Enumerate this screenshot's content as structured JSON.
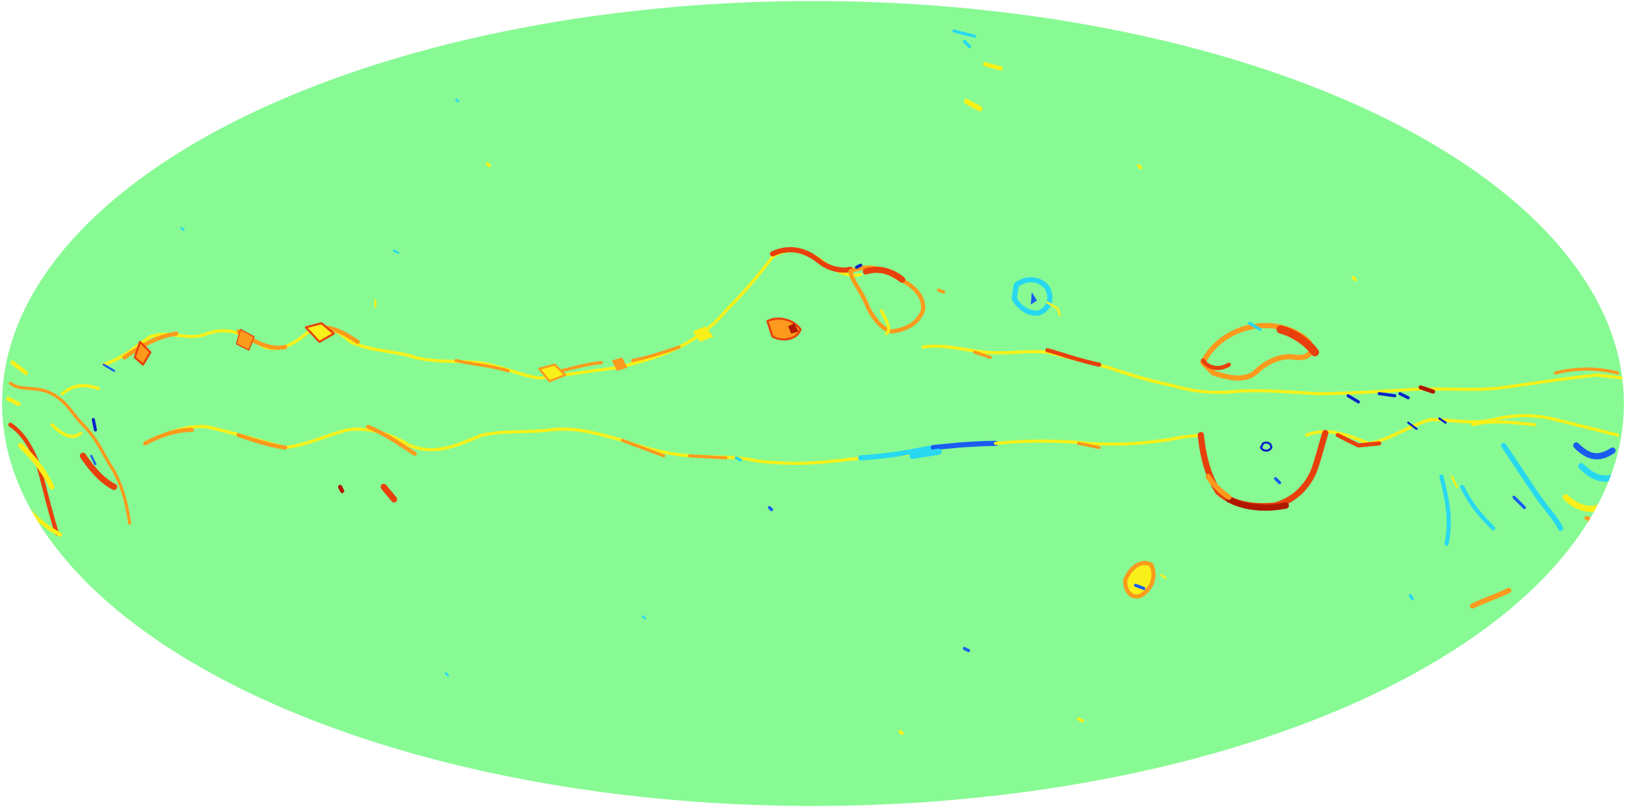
{
  "map": {
    "projection": "mollweide",
    "background_color": "#ffffff",
    "base_color": "#88fa94",
    "colormap": "jet",
    "palette": {
      "deep_red": "#b01800",
      "red": "#e8400c",
      "orange": "#fb9a1c",
      "yellow": "#f8f018",
      "cyan": "#28d8f0",
      "blue": "#1a5cf0",
      "deep_blue": "#0822c8"
    },
    "features": [
      "galactic-plane-north-filament",
      "galactic-plane-south-filament",
      "central-loop",
      "northern-ring",
      "eastern-loop-upper",
      "eastern-loop-lower",
      "left-limb-structures",
      "right-limb-structures",
      "southern-blob",
      "scattered-specks"
    ]
  }
}
